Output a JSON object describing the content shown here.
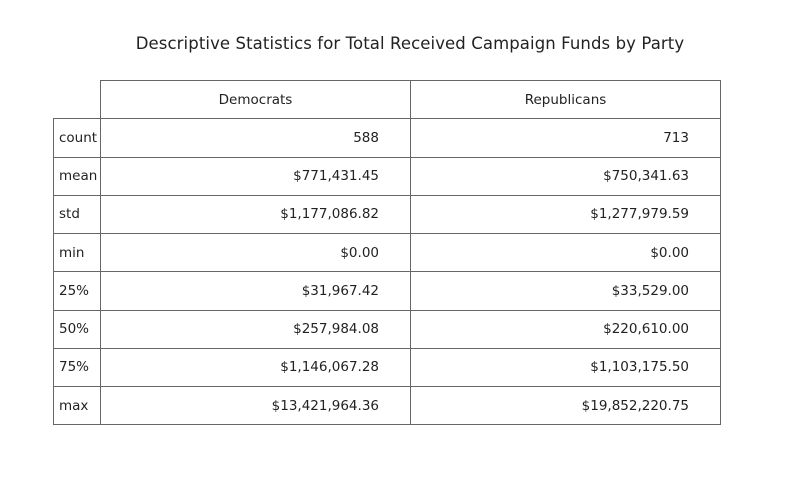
{
  "chart_data": {
    "type": "table",
    "title": "Descriptive Statistics for Total Received Campaign Funds by Party",
    "columns": [
      "Democrats",
      "Republicans"
    ],
    "rows": [
      {
        "label": "count",
        "values": [
          "588",
          "713"
        ]
      },
      {
        "label": "mean",
        "values": [
          "$771,431.45",
          "$750,341.63"
        ]
      },
      {
        "label": "std",
        "values": [
          "$1,177,086.82",
          "$1,277,979.59"
        ]
      },
      {
        "label": "min",
        "values": [
          "$0.00",
          "$0.00"
        ]
      },
      {
        "label": "25%",
        "values": [
          "$31,967.42",
          "$33,529.00"
        ]
      },
      {
        "label": "50%",
        "values": [
          "$257,984.08",
          "$220,610.00"
        ]
      },
      {
        "label": "75%",
        "values": [
          "$1,146,067.28",
          "$1,103,175.50"
        ]
      },
      {
        "label": "max",
        "values": [
          "$13,421,964.36",
          "$19,852,220.75"
        ]
      }
    ]
  }
}
